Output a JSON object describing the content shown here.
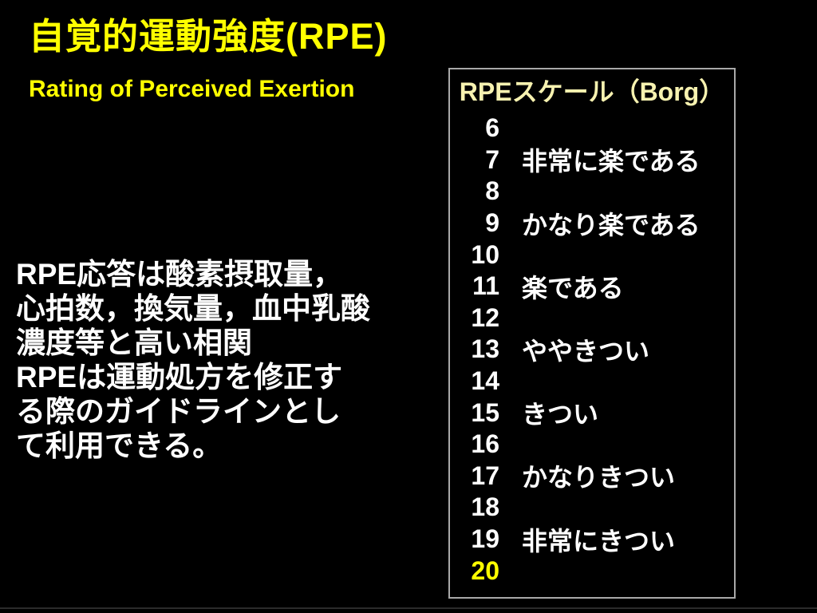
{
  "slide": {
    "title": "自覚的運動強度(RPE)",
    "subtitle": "Rating of Perceived Exertion",
    "body_lines": [
      "RPE応答は酸素摂取量，",
      "心拍数，換気量，血中乳酸",
      "濃度等と高い相関",
      "RPEは運動処方を修正す",
      "る際のガイドラインとし",
      "て利用できる。"
    ]
  },
  "scale_box": {
    "header": "RPEスケール（Borg）",
    "rows": [
      {
        "value": "6",
        "label": "",
        "highlight": false
      },
      {
        "value": "7",
        "label": "非常に楽である",
        "highlight": false
      },
      {
        "value": "8",
        "label": "",
        "highlight": false
      },
      {
        "value": "9",
        "label": "かなり楽である",
        "highlight": false
      },
      {
        "value": "10",
        "label": "",
        "highlight": false
      },
      {
        "value": "11",
        "label": "楽である",
        "highlight": false
      },
      {
        "value": "12",
        "label": "",
        "highlight": false
      },
      {
        "value": "13",
        "label": "ややきつい",
        "highlight": false
      },
      {
        "value": "14",
        "label": "",
        "highlight": false
      },
      {
        "value": "15",
        "label": "きつい",
        "highlight": false
      },
      {
        "value": "16",
        "label": "",
        "highlight": false
      },
      {
        "value": "17",
        "label": "かなりきつい",
        "highlight": false
      },
      {
        "value": "18",
        "label": "",
        "highlight": false
      },
      {
        "value": "19",
        "label": "非常にきつい",
        "highlight": false
      },
      {
        "value": "20",
        "label": "",
        "highlight": true
      }
    ]
  },
  "colors": {
    "background": "#000000",
    "title_yellow": "#FFFF00",
    "scale_header_pale_yellow": "#F7F2B0",
    "body_white": "#FFFFFF",
    "highlight_yellow": "#FFFF00",
    "box_border_gray": "#A9A9A9"
  }
}
